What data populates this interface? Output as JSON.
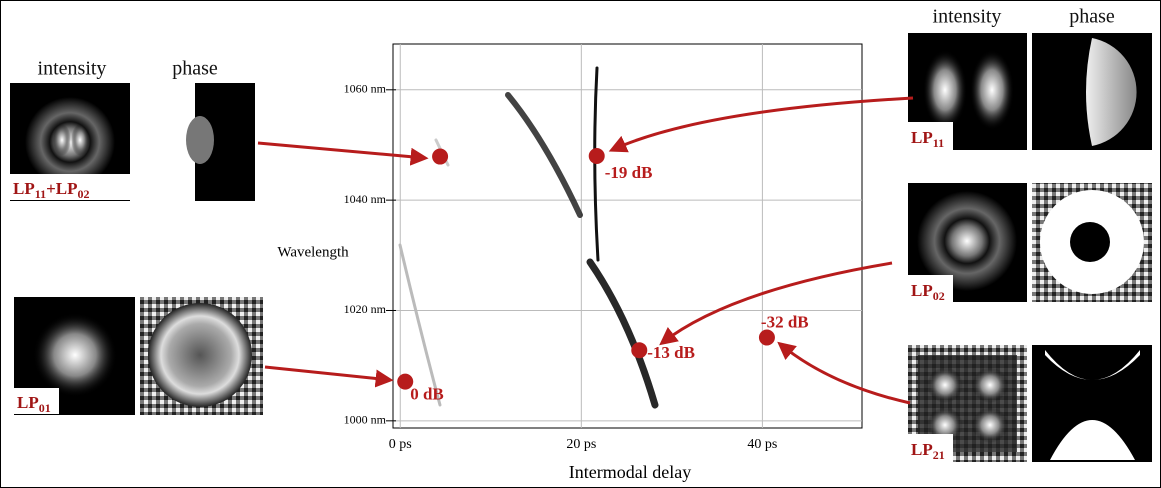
{
  "headers": {
    "left": [
      "intensity",
      "phase"
    ],
    "right": [
      "intensity",
      "phase"
    ]
  },
  "modes": [
    {
      "label": [
        "LP",
        "11",
        "+LP",
        "02"
      ]
    },
    {
      "label": [
        "LP",
        "01"
      ]
    },
    {
      "label": [
        "LP",
        "11"
      ]
    },
    {
      "label": [
        "LP",
        "02"
      ]
    },
    {
      "label": [
        "LP",
        "21"
      ]
    }
  ],
  "chart_data": {
    "type": "scatter",
    "xlabel": "Intermodal delay",
    "ylabel": "Wavelength",
    "xlim": [
      -0.8,
      51
    ],
    "ylim": [
      998.7,
      1068.3
    ],
    "xticks": [
      {
        "value": 0,
        "label": "0 ps"
      },
      {
        "value": 20,
        "label": "20 ps"
      },
      {
        "value": 40,
        "label": "40 ps"
      }
    ],
    "yticks": [
      {
        "value": 1000,
        "label": "1000 nm"
      },
      {
        "value": 1020,
        "label": "1020 nm"
      },
      {
        "value": 1040,
        "label": "1040 nm"
      },
      {
        "value": 1060,
        "label": "1060 nm"
      }
    ],
    "grid": true,
    "color": "#b71c1c",
    "x": [
      0.55,
      4.4,
      21.7,
      26.4,
      40.5
    ],
    "values": [
      1007.1,
      1047.9,
      1048.0,
      1012.8,
      1015.1
    ],
    "labels": [
      "0 dB",
      null,
      "-19 dB",
      "-13 dB",
      "-32 dB"
    ]
  }
}
